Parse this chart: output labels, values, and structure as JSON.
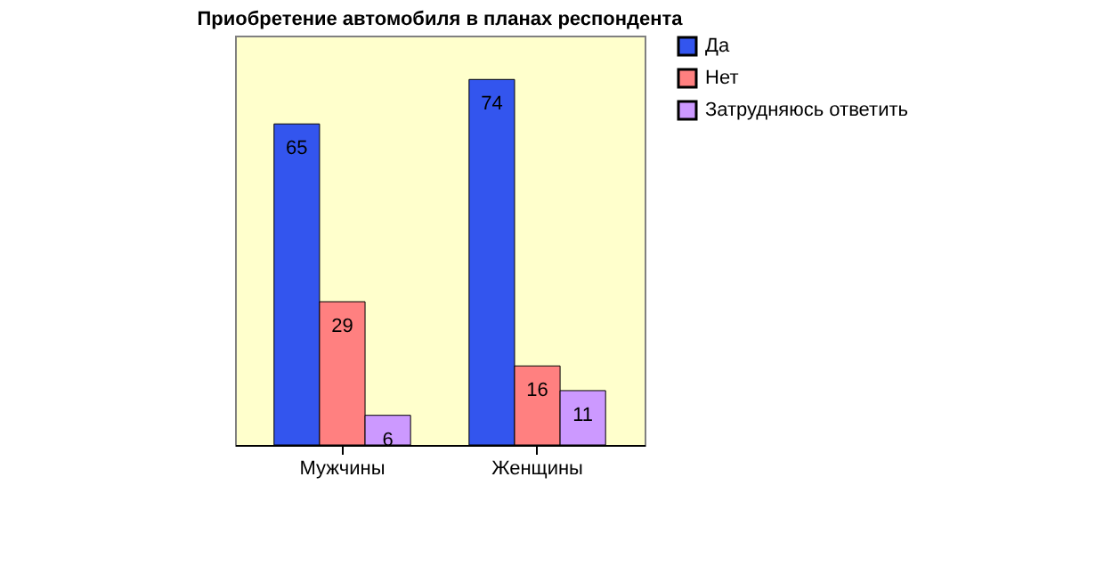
{
  "chart_data": {
    "type": "bar",
    "title": "Приобретение автомобиля в планах респондента",
    "categories": [
      "Мужчины",
      "Женщины"
    ],
    "series": [
      {
        "name": "Да",
        "color": "#3355ee",
        "values": [
          65,
          74
        ]
      },
      {
        "name": "Нет",
        "color": "#ff8080",
        "values": [
          29,
          16
        ]
      },
      {
        "name": "Затрудняюсь ответить",
        "color": "#cc99ff",
        "values": [
          6,
          11
        ]
      }
    ],
    "data_labels": true,
    "legend": "right",
    "grid": false
  }
}
